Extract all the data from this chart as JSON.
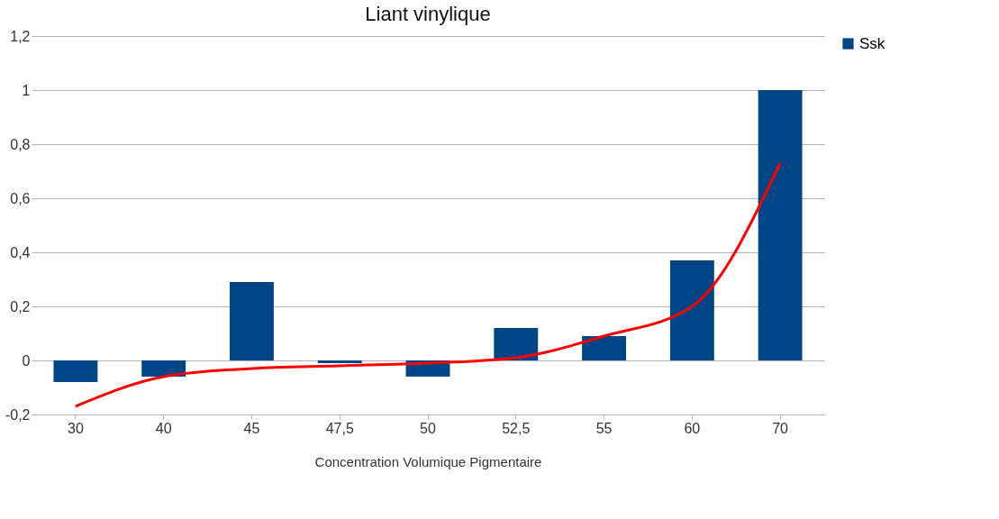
{
  "chart_data": {
    "type": "bar",
    "title": "Liant vinylique",
    "xlabel": "Concentration Volumique Pigmentaire",
    "categories": [
      "30",
      "40",
      "45",
      "47,5",
      "50",
      "52,5",
      "55",
      "60",
      "70"
    ],
    "series": [
      {
        "name": "Ssk",
        "color": "#004586",
        "values": [
          -0.08,
          -0.06,
          0.29,
          -0.01,
          -0.06,
          0.12,
          0.09,
          0.37,
          1.0
        ]
      },
      {
        "type": "line",
        "color": "#ff0000",
        "values": [
          -0.17,
          -0.06,
          -0.03,
          -0.02,
          -0.01,
          0.01,
          0.09,
          0.2,
          0.73
        ]
      }
    ],
    "ylim": [
      -0.2,
      1.2
    ],
    "yticks": [
      {
        "value": -0.2,
        "label": "-0,2"
      },
      {
        "value": 0,
        "label": "0"
      },
      {
        "value": 0.2,
        "label": "0,2"
      },
      {
        "value": 0.4,
        "label": "0,4"
      },
      {
        "value": 0.6,
        "label": "0,6"
      },
      {
        "value": 0.8,
        "label": "0,8"
      },
      {
        "value": 1,
        "label": "1"
      },
      {
        "value": 1.2,
        "label": "1,2"
      }
    ],
    "grid": "y",
    "legend": "right"
  }
}
